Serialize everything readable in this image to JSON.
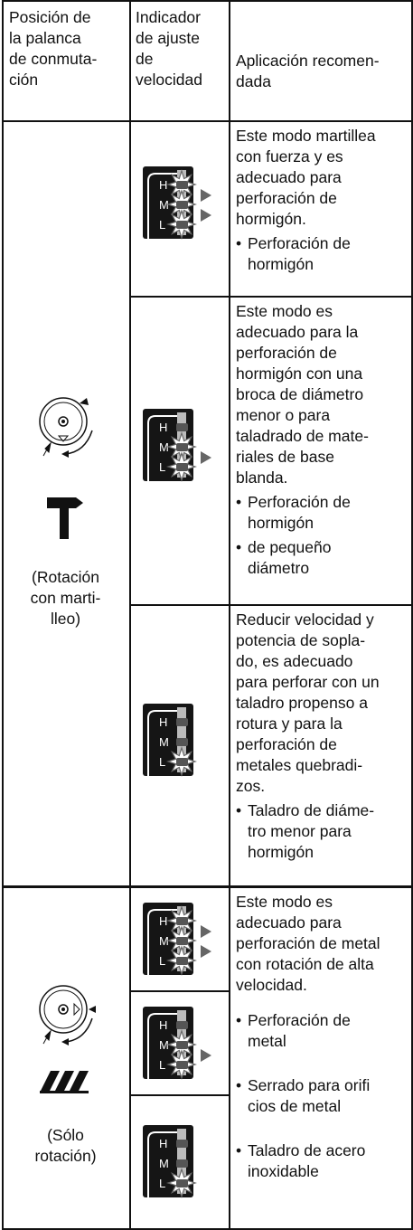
{
  "header": {
    "lever": [
      "Posición de",
      "la palanca",
      "de conmuta-",
      "ción"
    ],
    "indicator": [
      "Indicador",
      "de ajuste",
      "de",
      "velocidad"
    ],
    "application": [
      "Aplicación recomen-",
      "dada"
    ]
  },
  "indicator_letters": [
    "H",
    "M",
    "L"
  ],
  "groups": [
    {
      "label": [
        "(Rotación",
        "con marti-",
        "lleo)"
      ],
      "rows": [
        {
          "description": [
            "Este modo martillea",
            "con fuerza y es",
            "adecuado para",
            "perforación de",
            "hormigón."
          ],
          "bullets": [
            [
              "Perforación de",
              "hormigón"
            ]
          ]
        },
        {
          "description": [
            "Este modo es",
            "adecuado para la",
            "perforación de",
            "hormigón con una",
            "broca de diámetro",
            "menor o para",
            "taladrado de mate-",
            "riales de base",
            "blanda."
          ],
          "bullets": [
            [
              "Perforación de",
              "hormigón"
            ],
            [
              "de pequeño",
              "diámetro"
            ]
          ]
        },
        {
          "description": [
            "Reducir velocidad y",
            "potencia de sopla-",
            "do, es adecuado",
            "para perforar con un",
            "taladro propenso a",
            "rotura y para la",
            "perforación de",
            "metales quebradi-",
            "zos."
          ],
          "bullets": [
            [
              "Taladro de diáme-",
              "tro menor para",
              "hormigón"
            ]
          ]
        }
      ]
    },
    {
      "label": [
        "(Sólo",
        "rotación)"
      ],
      "rows": [
        {
          "description": [
            "Este modo es",
            "adecuado para",
            "perforación de metal",
            "con rotación de alta",
            "velocidad."
          ],
          "bullets": [
            [
              "Perforación de",
              "metal"
            ],
            [
              "Serrado para orifi",
              "cios de metal"
            ],
            [
              "Taladro de acero",
              "inoxidable"
            ]
          ]
        }
      ]
    }
  ]
}
